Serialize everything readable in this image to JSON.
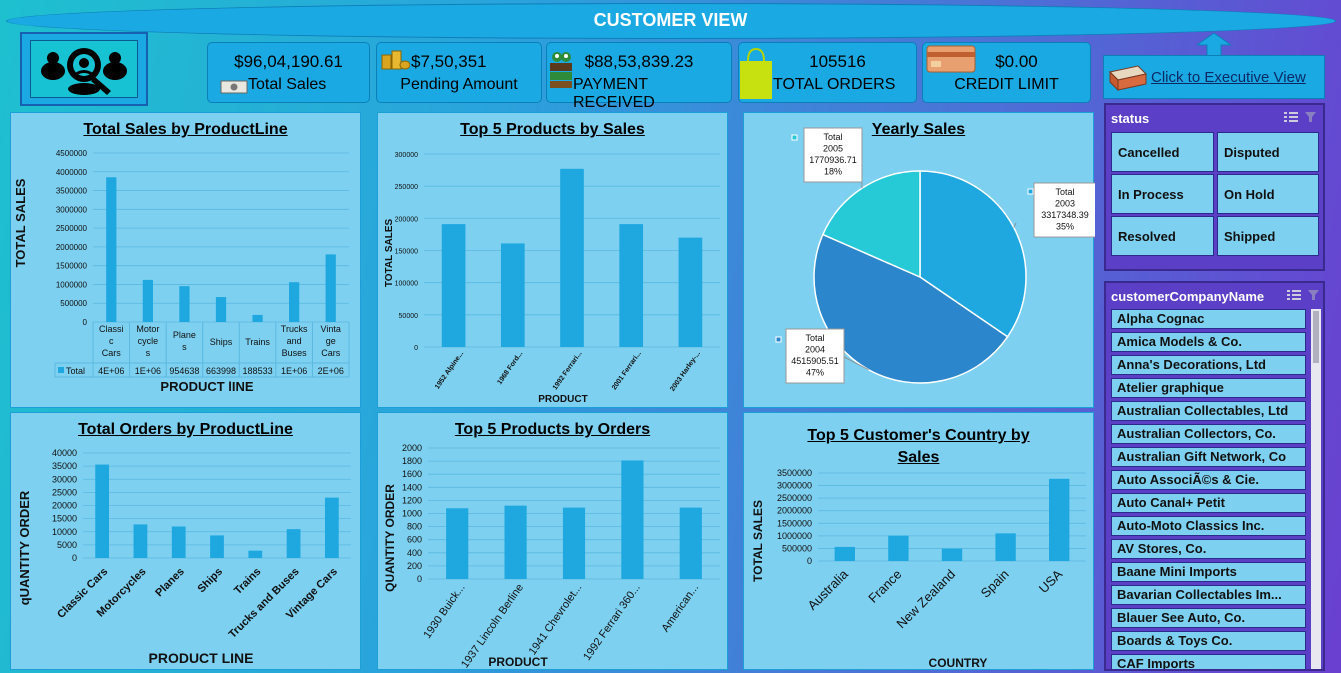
{
  "header": {
    "title": "CUSTOMER VIEW"
  },
  "kpis": [
    {
      "value": "$96,04,190.61",
      "label": "Total Sales",
      "icon": "cash-icon"
    },
    {
      "value": "$7,50,351",
      "label": "Pending Amount",
      "icon": "coins-icon"
    },
    {
      "value": "$88,53,839.23",
      "label": "PAYMENT RECEIVED",
      "icon": "money-stack-icon"
    },
    {
      "value": "105516",
      "label": "TOTAL ORDERS",
      "icon": "shopping-bag-icon"
    },
    {
      "value": "$0.00",
      "label": "CREDIT LIMIT",
      "icon": "credit-card-icon"
    }
  ],
  "exec_link": {
    "label": "Click to Executive View"
  },
  "status_slicer": {
    "title": "status",
    "items": [
      "Cancelled",
      "Disputed",
      "In Process",
      "On Hold",
      "Resolved",
      "Shipped"
    ]
  },
  "company_slicer": {
    "title": "customerCompanyName",
    "items": [
      "Alpha Cognac",
      "Amica Models & Co.",
      "Anna's Decorations, Ltd",
      "Atelier graphique",
      "Australian Collectables, Ltd",
      "Australian Collectors, Co.",
      "Australian Gift Network, Co",
      "Auto AssociÃ©s & Cie.",
      "Auto Canal+ Petit",
      "Auto-Moto Classics Inc.",
      "AV Stores, Co.",
      "Baane Mini Imports",
      "Bavarian Collectables Im...",
      "Blauer See Auto, Co.",
      "Boards & Toys Co.",
      "CAF Imports"
    ]
  },
  "chart_data": [
    {
      "type": "bar",
      "title": "Total Sales by ProductLine",
      "xlabel": "PRODUCT lINE",
      "ylabel": "TOTAL SALES",
      "ylim": [
        0,
        4500000
      ],
      "yticks": [
        "0",
        "500000",
        "1000000",
        "1500000",
        "2000000",
        "2500000",
        "3000000",
        "3500000",
        "4000000",
        "4500000"
      ],
      "categories": [
        "Classic Cars",
        "Motorcycles",
        "Planes",
        "Ships",
        "Trains",
        "Trucks and Buses",
        "Vintage Cars"
      ],
      "category_labels": [
        [
          "Classi",
          "c",
          "Cars"
        ],
        [
          "Motor",
          "cycle",
          "s"
        ],
        [
          "Plane",
          "s"
        ],
        [
          "Ships"
        ],
        [
          "Trains"
        ],
        [
          "Trucks",
          "and",
          "Buses"
        ],
        [
          "Vinta",
          "ge",
          "Cars"
        ]
      ],
      "series": [
        {
          "name": "Total",
          "values": [
            3853922,
            1121426,
            954638,
            663998,
            188533,
            1060000,
            1800000
          ]
        }
      ],
      "table_values": [
        "4E+06",
        "1E+06",
        "954638",
        "663998",
        "188533",
        "1E+06",
        "2E+06"
      ],
      "legend": "Total"
    },
    {
      "type": "bar",
      "title": "Top 5 Products by Sales",
      "xlabel": "PRODUCT",
      "ylabel": "TOTAL SALES",
      "ylim": [
        0,
        300000
      ],
      "yticks": [
        "0",
        "50000",
        "100000",
        "150000",
        "200000",
        "250000",
        "300000"
      ],
      "categories": [
        "1952 Alpine...",
        "1968 Ford...",
        "1992 Ferrari...",
        "2001 Ferrari...",
        "2003 Harley-..."
      ],
      "series": [
        {
          "values": [
            191000,
            161000,
            277000,
            191000,
            170000
          ]
        }
      ]
    },
    {
      "type": "pie",
      "title": "Yearly Sales",
      "slices": [
        {
          "year": "2003",
          "value": 3317348.39,
          "pct": "35%",
          "color": "#1fa8e0"
        },
        {
          "year": "2004",
          "value": 4515905.51,
          "pct": "47%",
          "color": "#2b86cc"
        },
        {
          "year": "2005",
          "value": 1770936.71,
          "pct": "18%",
          "color": "#25cad6"
        }
      ],
      "labels": [
        {
          "lines": [
            "Total",
            "2003",
            "3317348.39",
            "35%"
          ]
        },
        {
          "lines": [
            "Total",
            "2004",
            "4515905.51",
            "47%"
          ]
        },
        {
          "lines": [
            "Total",
            "2005",
            "1770936.71",
            "18%"
          ]
        }
      ]
    },
    {
      "type": "bar",
      "title": "Total Orders by ProductLine",
      "xlabel": "PRODUCT LINE",
      "ylabel": "qUANTITY ORDER",
      "ylim": [
        0,
        40000
      ],
      "yticks": [
        "0",
        "5000",
        "10000",
        "15000",
        "20000",
        "25000",
        "30000",
        "35000",
        "40000"
      ],
      "categories": [
        "Classic Cars",
        "Motorcycles",
        "Planes",
        "Ships",
        "Trains",
        "Trucks and Buses",
        "Vintage Cars"
      ],
      "series": [
        {
          "values": [
            35600,
            12800,
            12000,
            8600,
            2800,
            11000,
            23000
          ]
        }
      ]
    },
    {
      "type": "bar",
      "title": "Top 5 Products by Orders",
      "xlabel": "PRODUCT",
      "ylabel": "QUANTITY ORDER",
      "ylim": [
        0,
        2000
      ],
      "yticks": [
        "0",
        "200",
        "400",
        "600",
        "800",
        "1000",
        "1200",
        "1400",
        "1600",
        "1800",
        "2000"
      ],
      "categories": [
        "1930 Buick...",
        "1937 Lincoln Berline",
        "1941 Chevrolet...",
        "1992 Ferrari 360...",
        "American..."
      ],
      "series": [
        {
          "values": [
            1080,
            1120,
            1090,
            1810,
            1090
          ]
        }
      ]
    },
    {
      "type": "bar",
      "title": "Top 5 Customer's Country by Sales",
      "title_lines": [
        "Top 5 Customer's Country by",
        "Sales"
      ],
      "xlabel": "COUNTRY",
      "ylabel": "TOTAL SALES",
      "ylim": [
        0,
        3500000
      ],
      "yticks": [
        "0",
        "500000",
        "1000000",
        "1500000",
        "2000000",
        "2500000",
        "3000000",
        "3500000"
      ],
      "categories": [
        "Australia",
        "France",
        "New Zealand",
        "Spain",
        "USA"
      ],
      "series": [
        {
          "values": [
            560000,
            1010000,
            490000,
            1100000,
            3270000
          ]
        }
      ]
    }
  ]
}
